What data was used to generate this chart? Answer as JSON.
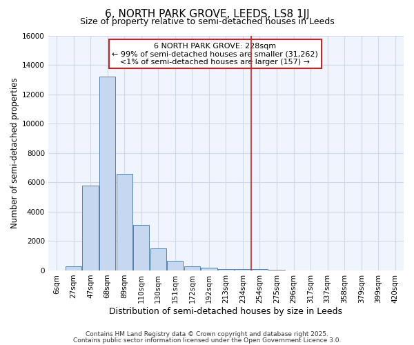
{
  "title": "6, NORTH PARK GROVE, LEEDS, LS8 1JJ",
  "subtitle": "Size of property relative to semi-detached houses in Leeds",
  "xlabel": "Distribution of semi-detached houses by size in Leeds",
  "ylabel": "Number of semi-detached properties",
  "bar_color": "#c5d8f0",
  "bar_edge_color": "#5580b0",
  "background_color": "#ffffff",
  "plot_bg_color": "#f0f4fc",
  "grid_color": "#d0d8e8",
  "categories": [
    "6sqm",
    "27sqm",
    "47sqm",
    "68sqm",
    "89sqm",
    "110sqm",
    "130sqm",
    "151sqm",
    "172sqm",
    "192sqm",
    "213sqm",
    "234sqm",
    "254sqm",
    "275sqm",
    "296sqm",
    "317sqm",
    "337sqm",
    "358sqm",
    "379sqm",
    "399sqm",
    "420sqm"
  ],
  "values": [
    0,
    300,
    5800,
    13200,
    6600,
    3100,
    1500,
    650,
    300,
    200,
    100,
    100,
    80,
    50,
    0,
    0,
    0,
    0,
    0,
    0,
    0
  ],
  "ylim": [
    0,
    16000
  ],
  "yticks": [
    0,
    2000,
    4000,
    6000,
    8000,
    10000,
    12000,
    14000,
    16000
  ],
  "vline_x": 11.5,
  "vline_color": "#cc2222",
  "annotation_title": "6 NORTH PARK GROVE: 228sqm",
  "annotation_line1": "← 99% of semi-detached houses are smaller (31,262)",
  "annotation_line2": "<1% of semi-detached houses are larger (157) →",
  "annotation_box_color": "#ffffff",
  "annotation_box_edge": "#cc2222",
  "footer1": "Contains HM Land Registry data © Crown copyright and database right 2025.",
  "footer2": "Contains public sector information licensed under the Open Government Licence 3.0.",
  "title_fontsize": 11,
  "subtitle_fontsize": 9,
  "tick_fontsize": 7.5,
  "ylabel_fontsize": 8.5,
  "xlabel_fontsize": 9,
  "annotation_fontsize": 8,
  "footer_fontsize": 6.5
}
